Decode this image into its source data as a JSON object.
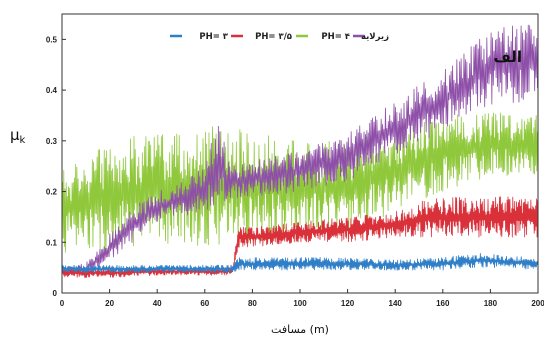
{
  "chart_data": {
    "type": "line",
    "title": "",
    "panel_label": "الف",
    "xlabel": "مسافت (m)",
    "ylabel_main": "μ",
    "ylabel_sub": "k",
    "xlim": [
      0,
      200
    ],
    "ylim": [
      0,
      0.55
    ],
    "xticks": [
      "0",
      "20",
      "40",
      "60",
      "80",
      "100",
      "120",
      "140",
      "160",
      "180",
      "200"
    ],
    "yticks": [
      "0",
      "0.1",
      "0.2",
      "0.3",
      "0.4",
      "0.5"
    ],
    "legend_position": "top",
    "series": [
      {
        "name": "PH= ۳",
        "color": "#2f7fc8",
        "x": [
          0,
          20,
          40,
          60,
          70,
          72,
          74,
          80,
          100,
          120,
          140,
          160,
          175,
          185,
          200
        ],
        "low": [
          0.04,
          0.04,
          0.04,
          0.04,
          0.04,
          0.04,
          0.045,
          0.045,
          0.045,
          0.045,
          0.045,
          0.045,
          0.05,
          0.05,
          0.045
        ],
        "high": [
          0.055,
          0.055,
          0.055,
          0.055,
          0.055,
          0.055,
          0.07,
          0.07,
          0.07,
          0.07,
          0.065,
          0.07,
          0.08,
          0.075,
          0.07
        ]
      },
      {
        "name": "PH= ۳/۵",
        "color": "#d9303a",
        "x": [
          0,
          20,
          40,
          60,
          70,
          72,
          74,
          80,
          100,
          120,
          140,
          150,
          160,
          180,
          200
        ],
        "low": [
          0.03,
          0.03,
          0.035,
          0.035,
          0.035,
          0.04,
          0.09,
          0.09,
          0.1,
          0.1,
          0.11,
          0.11,
          0.11,
          0.11,
          0.11
        ],
        "high": [
          0.05,
          0.05,
          0.05,
          0.05,
          0.05,
          0.06,
          0.13,
          0.13,
          0.14,
          0.15,
          0.16,
          0.18,
          0.19,
          0.19,
          0.19
        ]
      },
      {
        "name": "PH= ۴",
        "color": "#8fc83a",
        "x": [
          0,
          20,
          40,
          60,
          80,
          100,
          120,
          140,
          160,
          180,
          200
        ],
        "low": [
          0.08,
          0.08,
          0.09,
          0.09,
          0.1,
          0.11,
          0.12,
          0.16,
          0.2,
          0.23,
          0.23
        ],
        "high": [
          0.25,
          0.3,
          0.32,
          0.33,
          0.32,
          0.3,
          0.3,
          0.32,
          0.35,
          0.36,
          0.35
        ]
      },
      {
        "name": "زیرلایه",
        "color": "#8e4fa8",
        "x": [
          0,
          10,
          20,
          25,
          30,
          40,
          50,
          60,
          65,
          70,
          80,
          100,
          120,
          140,
          160,
          180,
          200
        ],
        "low": [
          0.03,
          0.03,
          0.06,
          0.08,
          0.1,
          0.14,
          0.15,
          0.16,
          0.17,
          0.18,
          0.19,
          0.2,
          0.22,
          0.27,
          0.32,
          0.37,
          0.38
        ],
        "high": [
          0.05,
          0.06,
          0.12,
          0.14,
          0.17,
          0.2,
          0.22,
          0.25,
          0.36,
          0.26,
          0.26,
          0.28,
          0.32,
          0.38,
          0.44,
          0.52,
          0.54
        ]
      }
    ]
  }
}
